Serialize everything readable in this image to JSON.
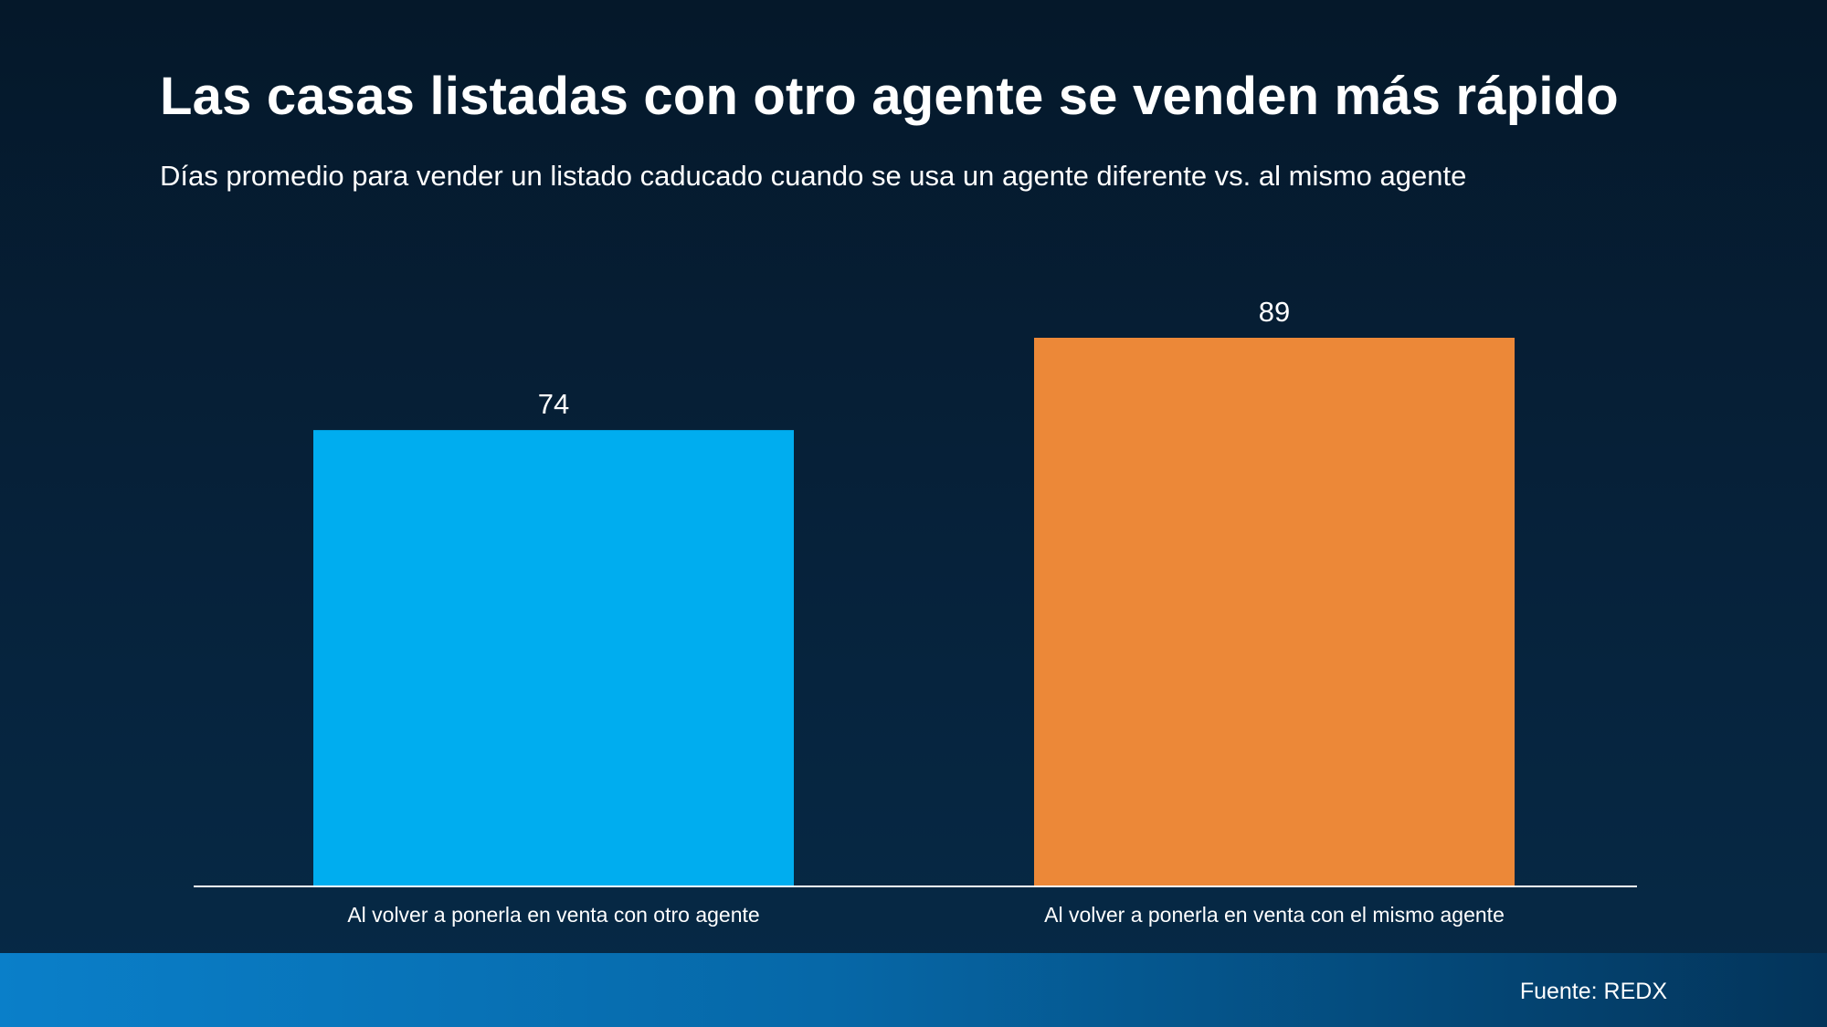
{
  "slide": {
    "title": "Las casas listadas con otro agente se venden más rápido",
    "subtitle": "Días promedio para vender un listado caducado cuando se usa un agente diferente vs. al mismo agente",
    "source": "Fuente: REDX"
  },
  "chart_data": {
    "type": "bar",
    "title": "Las casas listadas con otro agente se venden más rápido",
    "subtitle": "Días promedio para vender un listado caducado cuando se usa un agente diferente vs. al mismo agente",
    "categories": [
      "Al volver a ponerla en venta con otro agente",
      "Al volver a ponerla en venta con el mismo agente"
    ],
    "values": [
      74,
      89
    ],
    "colors": [
      "#00adef",
      "#ec8838"
    ],
    "data_labels": [
      "74",
      "89"
    ],
    "xlabel": "",
    "ylabel": "",
    "ylim": [
      0,
      89
    ],
    "grid": false,
    "legend": "none"
  }
}
